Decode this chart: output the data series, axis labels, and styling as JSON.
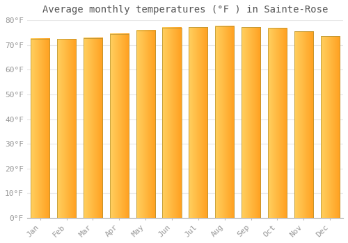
{
  "title": "Average monthly temperatures (°F ) in Sainte-Rose",
  "months": [
    "Jan",
    "Feb",
    "Mar",
    "Apr",
    "May",
    "Jun",
    "Jul",
    "Aug",
    "Sep",
    "Oct",
    "Nov",
    "Dec"
  ],
  "values": [
    72.5,
    72.3,
    72.8,
    74.5,
    75.9,
    77.0,
    77.2,
    77.5,
    77.2,
    76.7,
    75.4,
    73.5
  ],
  "bar_color_left": "#FFD060",
  "bar_color_right": "#FFA020",
  "ylim": [
    0,
    80
  ],
  "yticks": [
    0,
    10,
    20,
    30,
    40,
    50,
    60,
    70,
    80
  ],
  "ytick_labels": [
    "0°F",
    "10°F",
    "20°F",
    "30°F",
    "40°F",
    "50°F",
    "60°F",
    "70°F",
    "80°F"
  ],
  "background_color": "#ffffff",
  "bar_edge_color": "#b09030",
  "grid_color": "#e8e8e8",
  "title_fontsize": 10,
  "tick_fontsize": 8,
  "font_color": "#999999",
  "title_color": "#555555"
}
